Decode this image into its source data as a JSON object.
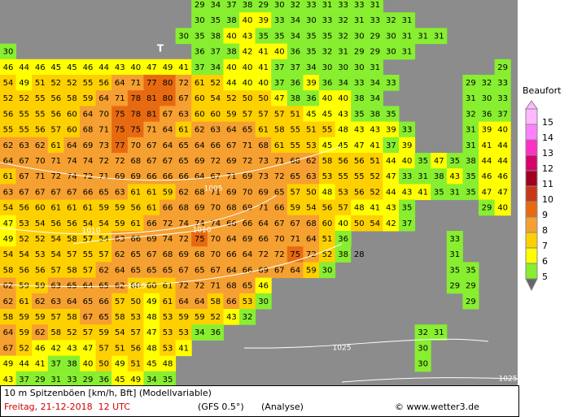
{
  "map": {
    "cells": [
      [
        null,
        null,
        null,
        null,
        null,
        null,
        null,
        null,
        null,
        null,
        null,
        null,
        29,
        34,
        37,
        38,
        29,
        30,
        32,
        33,
        31,
        33,
        33,
        31
      ],
      [
        null,
        null,
        null,
        null,
        null,
        null,
        null,
        null,
        null,
        null,
        null,
        null,
        30,
        35,
        38,
        40,
        39,
        33,
        34,
        30,
        33,
        32,
        31,
        33,
        32,
        31
      ],
      [
        null,
        null,
        null,
        null,
        null,
        null,
        null,
        null,
        null,
        null,
        null,
        30,
        35,
        38,
        40,
        43,
        35,
        35,
        34,
        35,
        35,
        32,
        30,
        29,
        30,
        31,
        31,
        31
      ],
      [
        30,
        null,
        null,
        null,
        null,
        null,
        null,
        null,
        null,
        null,
        null,
        null,
        36,
        37,
        38,
        42,
        41,
        40,
        36,
        35,
        32,
        31,
        29,
        29,
        30,
        31
      ],
      [
        46,
        44,
        46,
        45,
        45,
        46,
        44,
        43,
        40,
        47,
        49,
        41,
        37,
        34,
        40,
        40,
        41,
        37,
        37,
        34,
        30,
        30,
        30,
        31,
        null,
        null,
        null,
        null,
        null,
        null,
        null,
        29
      ],
      [
        54,
        49,
        51,
        52,
        52,
        55,
        56,
        64,
        71,
        77,
        80,
        72,
        61,
        52,
        44,
        40,
        40,
        37,
        36,
        39,
        36,
        34,
        33,
        34,
        33,
        null,
        null,
        null,
        null,
        29,
        32,
        33
      ],
      [
        52,
        52,
        55,
        56,
        58,
        59,
        64,
        71,
        78,
        81,
        80,
        67,
        60,
        54,
        52,
        50,
        50,
        47,
        38,
        36,
        40,
        40,
        38,
        34,
        null,
        null,
        null,
        null,
        null,
        31,
        30,
        33
      ],
      [
        56,
        55,
        55,
        56,
        60,
        64,
        70,
        75,
        78,
        81,
        67,
        63,
        60,
        60,
        59,
        57,
        57,
        57,
        51,
        45,
        45,
        43,
        35,
        38,
        35,
        null,
        null,
        null,
        null,
        32,
        36,
        37
      ],
      [
        55,
        55,
        56,
        57,
        60,
        68,
        71,
        75,
        75,
        71,
        64,
        61,
        62,
        63,
        64,
        65,
        61,
        58,
        55,
        51,
        55,
        48,
        43,
        43,
        39,
        33,
        null,
        null,
        null,
        31,
        39,
        40
      ],
      [
        62,
        63,
        62,
        61,
        64,
        69,
        73,
        77,
        70,
        67,
        64,
        65,
        64,
        66,
        67,
        71,
        68,
        61,
        55,
        53,
        45,
        45,
        47,
        41,
        37,
        39,
        null,
        null,
        null,
        31,
        41,
        44
      ],
      [
        64,
        67,
        70,
        71,
        74,
        74,
        72,
        72,
        68,
        67,
        67,
        65,
        69,
        72,
        69,
        72,
        73,
        71,
        68,
        62,
        58,
        56,
        56,
        51,
        44,
        40,
        35,
        47,
        35,
        38,
        44,
        44
      ],
      [
        61,
        67,
        71,
        72,
        74,
        72,
        71,
        69,
        69,
        66,
        66,
        66,
        64,
        67,
        71,
        69,
        73,
        72,
        65,
        63,
        53,
        55,
        55,
        52,
        47,
        33,
        31,
        38,
        43,
        35,
        46,
        46
      ],
      [
        63,
        67,
        67,
        67,
        67,
        66,
        65,
        63,
        61,
        61,
        59,
        62,
        68,
        71,
        69,
        70,
        69,
        65,
        57,
        50,
        48,
        53,
        56,
        52,
        44,
        43,
        41,
        35,
        31,
        35,
        47,
        47
      ],
      [
        54,
        56,
        60,
        61,
        61,
        61,
        59,
        59,
        56,
        61,
        66,
        68,
        69,
        70,
        68,
        69,
        71,
        66,
        59,
        54,
        56,
        57,
        48,
        41,
        43,
        35,
        null,
        null,
        null,
        null,
        29,
        40
      ],
      [
        47,
        53,
        54,
        56,
        56,
        54,
        54,
        59,
        61,
        66,
        72,
        74,
        74,
        74,
        66,
        66,
        64,
        67,
        67,
        68,
        60,
        40,
        50,
        54,
        42,
        37
      ],
      [
        49,
        52,
        52,
        54,
        58,
        57,
        54,
        63,
        66,
        69,
        74,
        72,
        75,
        70,
        64,
        69,
        66,
        70,
        71,
        64,
        51,
        36,
        null,
        null,
        null,
        null,
        null,
        null,
        33
      ],
      [
        54,
        54,
        53,
        54,
        57,
        55,
        57,
        62,
        65,
        67,
        68,
        69,
        68,
        70,
        66,
        64,
        72,
        72,
        75,
        72,
        52,
        38,
        28,
        null,
        null,
        null,
        null,
        null,
        31
      ],
      [
        58,
        56,
        56,
        57,
        58,
        57,
        62,
        64,
        65,
        65,
        65,
        67,
        65,
        67,
        64,
        66,
        69,
        67,
        64,
        59,
        30,
        null,
        null,
        null,
        null,
        null,
        null,
        null,
        35,
        35
      ],
      [
        62,
        59,
        59,
        63,
        65,
        64,
        65,
        62,
        60,
        60,
        61,
        72,
        72,
        71,
        68,
        65,
        46,
        null,
        null,
        null,
        null,
        null,
        null,
        null,
        null,
        null,
        null,
        null,
        29,
        29
      ],
      [
        62,
        61,
        62,
        63,
        64,
        65,
        66,
        57,
        50,
        49,
        61,
        64,
        64,
        58,
        66,
        53,
        30,
        null,
        null,
        null,
        null,
        null,
        null,
        null,
        null,
        null,
        null,
        null,
        null,
        29
      ],
      [
        58,
        59,
        59,
        57,
        58,
        67,
        65,
        58,
        53,
        48,
        53,
        59,
        59,
        52,
        43,
        32
      ],
      [
        64,
        59,
        62,
        58,
        52,
        57,
        59,
        54,
        57,
        47,
        53,
        53,
        34,
        36,
        null,
        null,
        null,
        null,
        null,
        null,
        null,
        null,
        null,
        null,
        null,
        null,
        32,
        31
      ],
      [
        67,
        52,
        46,
        42,
        43,
        47,
        57,
        51,
        56,
        48,
        53,
        41,
        null,
        null,
        null,
        null,
        null,
        null,
        null,
        null,
        null,
        null,
        null,
        null,
        null,
        null,
        30
      ],
      [
        49,
        44,
        41,
        37,
        38,
        40,
        50,
        49,
        51,
        45,
        48,
        null,
        null,
        null,
        null,
        null,
        null,
        null,
        null,
        null,
        null,
        null,
        null,
        null,
        null,
        null,
        30
      ],
      [
        43,
        37,
        29,
        31,
        33,
        29,
        36,
        45,
        49,
        34,
        35
      ]
    ],
    "marker": "T",
    "isobars": [
      "1005",
      "1010",
      "1010",
      "1015",
      "1025",
      "1025"
    ]
  },
  "legend": {
    "title": "Beaufort",
    "levels": [
      {
        "label": "15",
        "color": "#ffb8ff"
      },
      {
        "label": "14",
        "color": "#ff80ff"
      },
      {
        "label": "13",
        "color": "#ff30c8"
      },
      {
        "label": "12",
        "color": "#d8006a"
      },
      {
        "label": "11",
        "color": "#a00020"
      },
      {
        "label": "10",
        "color": "#c83818"
      },
      {
        "label": "9",
        "color": "#e86a10"
      },
      {
        "label": "8",
        "color": "#f5a030"
      },
      {
        "label": "7",
        "color": "#ffd000"
      },
      {
        "label": "6",
        "color": "#ffff00"
      },
      {
        "label": "5",
        "color": "#88ee30"
      }
    ]
  },
  "footer": {
    "variable": "10 m Spitzenböen [km/h, Bft] (Modellvariable)",
    "date": "Freitag, 21-12-2018  12 UTC",
    "model": "(GFS 0.5°)",
    "run": "(Analyse)",
    "source": "© www.wetter3.de"
  }
}
